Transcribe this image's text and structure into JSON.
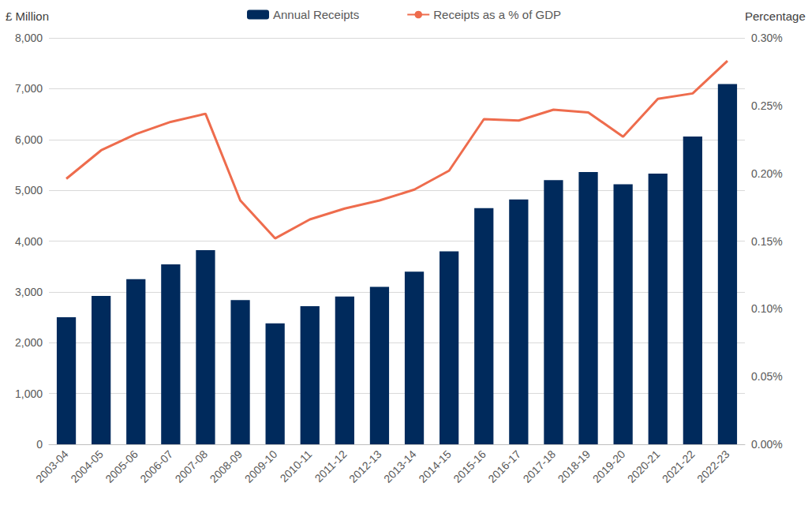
{
  "chart_data": {
    "type": "bar",
    "categories": [
      "2003-04",
      "2004-05",
      "2005-06",
      "2006-07",
      "2007-08",
      "2008-09",
      "2009-10",
      "2010-11",
      "2011-12",
      "2012-13",
      "2013-14",
      "2014-15",
      "2015-16",
      "2016-17",
      "2017-18",
      "2018-19",
      "2019-20",
      "2020-21",
      "2021-22",
      "2022-23"
    ],
    "y_label": "£ Million",
    "y2_label": "Percentage",
    "series": [
      {
        "name": "Annual Receipts",
        "type": "bar",
        "color": "#002a5c",
        "values": [
          2500,
          2920,
          3250,
          3540,
          3820,
          2840,
          2380,
          2720,
          2910,
          3100,
          3400,
          3800,
          4650,
          4820,
          5200,
          5360,
          5120,
          5330,
          6060,
          7090
        ]
      },
      {
        "name": "Receipts as a % of GDP",
        "type": "line",
        "color": "#ee6c4d",
        "axis": "y2",
        "values": [
          0.196,
          0.217,
          0.229,
          0.238,
          0.244,
          0.18,
          0.152,
          0.166,
          0.174,
          0.18,
          0.188,
          0.202,
          0.24,
          0.239,
          0.247,
          0.245,
          0.227,
          0.255,
          0.259,
          0.283
        ]
      }
    ],
    "ylim": [
      0,
      8000
    ],
    "yticks": [
      0,
      {
        "value": 1000,
        "label": "1,000"
      },
      {
        "value": 2000,
        "label": "2,000"
      },
      {
        "value": 3000,
        "label": "3,000"
      },
      {
        "value": 4000,
        "label": "4,000"
      },
      {
        "value": 5000,
        "label": "5,000"
      },
      {
        "value": 6000,
        "label": "6,000"
      },
      {
        "value": 7000,
        "label": "7,000"
      },
      {
        "value": 8000,
        "label": "8,000"
      }
    ],
    "y2lim": [
      0,
      0.3
    ],
    "y2ticks": [
      {
        "value": 0,
        "label": "0.00%"
      },
      {
        "value": 0.05,
        "label": "0.05%"
      },
      {
        "value": 0.1,
        "label": "0.10%"
      },
      {
        "value": 0.15,
        "label": "0.15%"
      },
      {
        "value": 0.2,
        "label": "0.20%"
      },
      {
        "value": 0.25,
        "label": "0.25%"
      },
      {
        "value": 0.3,
        "label": "0.30%"
      }
    ],
    "grid": true,
    "legend": "top"
  }
}
